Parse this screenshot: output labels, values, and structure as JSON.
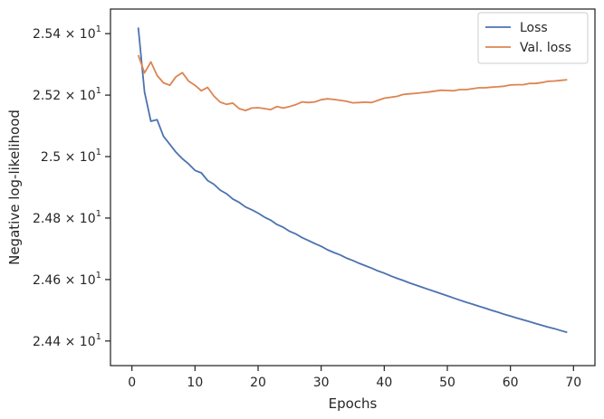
{
  "chart_data": {
    "type": "line",
    "xlabel": "Epochs",
    "ylabel": "Negative log-likelihood",
    "xlim": [
      -3.4,
      73.4
    ],
    "ylim": [
      24.32,
      25.48
    ],
    "xticks": [
      0,
      10,
      20,
      30,
      40,
      50,
      60,
      70
    ],
    "xtick_labels": [
      "0",
      "10",
      "20",
      "30",
      "40",
      "50",
      "60",
      "70"
    ],
    "yticks": [
      24.4,
      24.6,
      24.8,
      25.0,
      25.2,
      25.4
    ],
    "ytick_labels": [
      {
        "mantissa": "2.44",
        "exponent": "1"
      },
      {
        "mantissa": "2.46",
        "exponent": "1"
      },
      {
        "mantissa": "2.48",
        "exponent": "1"
      },
      {
        "mantissa": "2.5",
        "exponent": "1"
      },
      {
        "mantissa": "2.52",
        "exponent": "1"
      },
      {
        "mantissa": "2.54",
        "exponent": "1"
      }
    ],
    "grid": false,
    "legend": {
      "placement": "top-right"
    },
    "x": [
      1,
      2,
      3,
      4,
      5,
      6,
      7,
      8,
      9,
      10,
      11,
      12,
      13,
      14,
      15,
      16,
      17,
      18,
      19,
      20,
      21,
      22,
      23,
      24,
      25,
      26,
      27,
      28,
      29,
      30,
      31,
      32,
      33,
      34,
      35,
      36,
      37,
      38,
      39,
      40,
      41,
      42,
      43,
      44,
      45,
      46,
      47,
      48,
      49,
      50,
      51,
      52,
      53,
      54,
      55,
      56,
      57,
      58,
      59,
      60,
      61,
      62,
      63,
      64,
      65,
      66,
      67,
      68,
      69
    ],
    "series": [
      {
        "name": "Loss",
        "color": "#4c72b0",
        "values": [
          25.42,
          25.21,
          25.115,
          25.12,
          25.066,
          25.04,
          25.014,
          24.993,
          24.976,
          24.955,
          24.947,
          24.922,
          24.91,
          24.891,
          24.879,
          24.862,
          24.851,
          24.836,
          24.827,
          24.816,
          24.803,
          24.793,
          24.779,
          24.77,
          24.757,
          24.748,
          24.736,
          24.727,
          24.717,
          24.708,
          24.697,
          24.688,
          24.68,
          24.67,
          24.662,
          24.653,
          24.645,
          24.637,
          24.628,
          24.621,
          24.612,
          24.604,
          24.597,
          24.589,
          24.582,
          24.575,
          24.568,
          24.561,
          24.554,
          24.547,
          24.54,
          24.533,
          24.526,
          24.52,
          24.513,
          24.507,
          24.5,
          24.494,
          24.487,
          24.481,
          24.475,
          24.469,
          24.463,
          24.457,
          24.451,
          24.445,
          24.44,
          24.434,
          24.428
        ]
      },
      {
        "name": "Val. loss",
        "color": "#dd8452",
        "values": [
          25.33,
          25.272,
          25.308,
          25.264,
          25.24,
          25.232,
          25.26,
          25.273,
          25.245,
          25.232,
          25.214,
          25.225,
          25.197,
          25.177,
          25.17,
          25.174,
          25.156,
          25.15,
          25.158,
          25.159,
          25.156,
          25.153,
          25.163,
          25.158,
          25.163,
          25.169,
          25.178,
          25.176,
          25.178,
          25.185,
          25.188,
          25.186,
          25.183,
          25.18,
          25.175,
          25.176,
          25.177,
          25.176,
          25.183,
          25.19,
          25.193,
          25.196,
          25.202,
          25.204,
          25.206,
          25.208,
          25.21,
          25.213,
          25.216,
          25.215,
          25.214,
          25.218,
          25.218,
          25.221,
          25.224,
          25.224,
          25.226,
          25.227,
          25.229,
          25.233,
          25.234,
          25.234,
          25.238,
          25.238,
          25.241,
          25.245,
          25.246,
          25.248,
          25.25
        ]
      }
    ]
  }
}
